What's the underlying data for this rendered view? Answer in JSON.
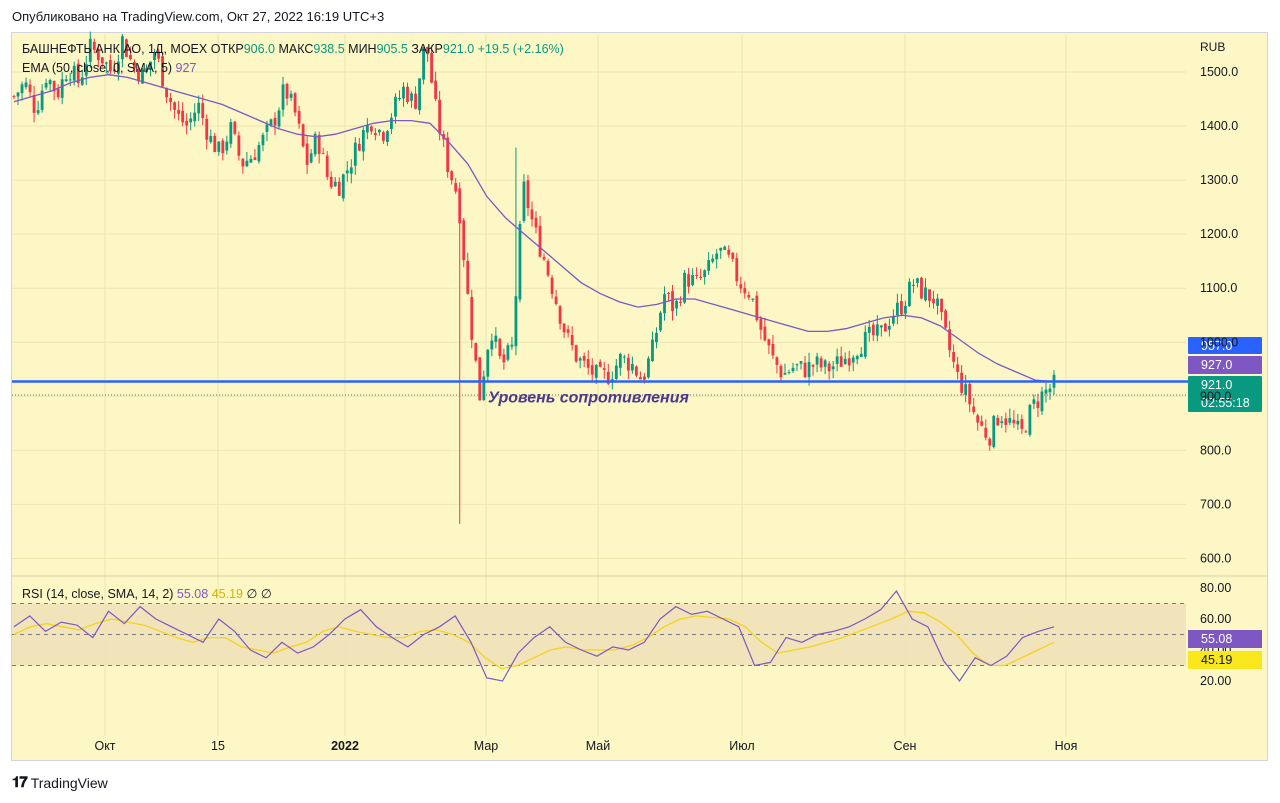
{
  "published": "Опубликовано на TradingView.com, Окт 27, 2022 16:19 UTC+3",
  "legend": {
    "symbol": "БАШНЕФТЬ АНК АО, 1Д, MOEX",
    "open_label": "ОТКР",
    "open": "906.0",
    "high_label": "МАКС",
    "high": "938.5",
    "low_label": "МИН",
    "low": "905.5",
    "close_label": "ЗАКР",
    "close": "921.0",
    "change": "+19.5 (+2.16%)",
    "ema": "EMA (50, close, 0, SMA, 5)",
    "ema_value": "927"
  },
  "footer": {
    "brand": "TradingView"
  },
  "colors": {
    "up": "#089981",
    "down": "#f23645",
    "ema": "#7e57c2",
    "resistance": "#2962ff",
    "rsi": "#7e57c2",
    "rsi_ma": "#f5d21c",
    "bg": "#fdf7c5"
  },
  "chart_data": [
    {
      "type": "candlestick",
      "currency": "RUB",
      "ylim": [
        600,
        1500
      ],
      "y_ticks": [
        "1500.0",
        "1400.0",
        "1300.0",
        "1200.0",
        "1100.0",
        "1000.0",
        "900.0",
        "800.0",
        "700.0",
        "600.0"
      ],
      "x_ticks": [
        "Окт",
        "15",
        "2022",
        "Мар",
        "Май",
        "Июл",
        "Сен",
        "Ноя"
      ],
      "annotation": "Уровень сопротивления",
      "resistance_level": 957.0,
      "price_labels": [
        {
          "text": "957.0",
          "value": 957.0,
          "color": "#2962ff"
        },
        {
          "text": "927.0",
          "value": 927.0,
          "color": "#7e57c2"
        },
        {
          "text": "921.0",
          "value": 921.0,
          "color": "#089981",
          "sub": "02:55:18"
        }
      ],
      "ohlc_path": [
        1455,
        1480,
        1430,
        1495,
        1460,
        1510,
        1480,
        1545,
        1530,
        1500,
        1560,
        1510,
        1490,
        1540,
        1470,
        1420,
        1400,
        1440,
        1380,
        1350,
        1395,
        1330,
        1345,
        1375,
        1410,
        1470,
        1420,
        1330,
        1380,
        1300,
        1290,
        1330,
        1380,
        1410,
        1385,
        1430,
        1470,
        1440,
        1560,
        1420,
        1330,
        1270,
        1060,
        900,
        1030,
        955,
        990,
        1290,
        1210,
        1150,
        1080,
        1010,
        970,
        950,
        935,
        940,
        970,
        960,
        930,
        990,
        1090,
        1060,
        1120,
        1110,
        1130,
        1170,
        1150,
        1110,
        1090,
        1020,
        970,
        940,
        955,
        950,
        960,
        950,
        960,
        975,
        995,
        1010,
        1015,
        1050,
        1070,
        1110,
        1090,
        1080,
        1010,
        940,
        900,
        850,
        825,
        870,
        850,
        830,
        880,
        905,
        921
      ],
      "ema50": [
        1445,
        1455,
        1465,
        1480,
        1490,
        1495,
        1490,
        1480,
        1470,
        1460,
        1450,
        1440,
        1425,
        1410,
        1395,
        1385,
        1380,
        1385,
        1395,
        1405,
        1410,
        1410,
        1405,
        1370,
        1330,
        1270,
        1230,
        1200,
        1170,
        1140,
        1110,
        1090,
        1075,
        1065,
        1070,
        1080,
        1080,
        1070,
        1060,
        1050,
        1040,
        1030,
        1020,
        1020,
        1025,
        1035,
        1045,
        1050,
        1045,
        1030,
        1005,
        980,
        960,
        945,
        930,
        927
      ],
      "x_range_dates": [
        "2021-09-01",
        "2022-10-27"
      ]
    },
    {
      "type": "line",
      "title": "RSI (14, close, SMA, 14, 2)",
      "rsi_value": "55.08",
      "rsi_ma_value": "45.19",
      "extra": "∅ ∅",
      "ylim": [
        15,
        85
      ],
      "y_ticks": [
        "80.00",
        "60.00",
        "40.00",
        "20.00"
      ],
      "bands": [
        70,
        50,
        30
      ],
      "rsi": [
        55,
        62,
        52,
        58,
        56,
        48,
        65,
        57,
        68,
        60,
        55,
        50,
        45,
        60,
        52,
        40,
        35,
        45,
        38,
        42,
        50,
        60,
        66,
        55,
        48,
        42,
        50,
        55,
        62,
        45,
        22,
        20,
        38,
        48,
        55,
        45,
        40,
        36,
        42,
        40,
        45,
        60,
        68,
        63,
        65,
        60,
        55,
        30,
        32,
        48,
        45,
        50,
        52,
        55,
        60,
        66,
        78,
        60,
        55,
        33,
        20,
        35,
        30,
        36,
        48,
        52,
        55
      ],
      "rsi_ma": [
        50,
        55,
        57,
        55,
        53,
        57,
        60,
        58,
        56,
        52,
        48,
        45,
        48,
        48,
        42,
        40,
        38,
        42,
        45,
        52,
        55,
        52,
        50,
        48,
        48,
        52,
        53,
        50,
        45,
        35,
        28,
        30,
        35,
        40,
        42,
        40,
        40,
        40,
        43,
        48,
        55,
        60,
        62,
        61,
        60,
        55,
        45,
        38,
        40,
        42,
        45,
        48,
        52,
        56,
        60,
        65,
        64,
        58,
        50,
        38,
        30,
        30,
        35,
        40,
        45
      ]
    }
  ]
}
